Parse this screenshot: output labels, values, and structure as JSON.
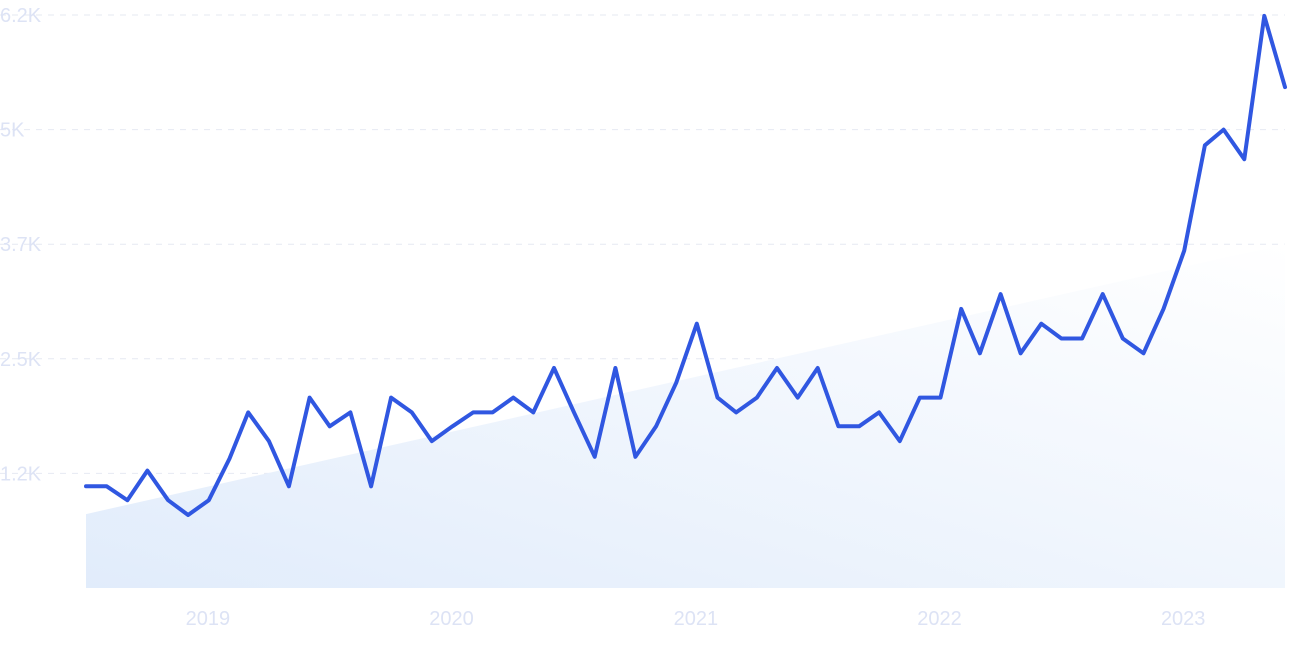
{
  "chart_data": {
    "type": "line",
    "title": "",
    "xlabel": "",
    "ylabel": "",
    "ylim": [
      0,
      6200
    ],
    "yticks": [
      {
        "value": 1240,
        "label": "1.2K"
      },
      {
        "value": 2480,
        "label": "2.5K"
      },
      {
        "value": 3720,
        "label": "3.7K"
      },
      {
        "value": 4960,
        "label": "5K"
      },
      {
        "value": 6200,
        "label": "6.2K"
      }
    ],
    "xticks": [
      {
        "value": "2019-01",
        "label": "2019"
      },
      {
        "value": "2020-01",
        "label": "2020"
      },
      {
        "value": "2021-01",
        "label": "2021"
      },
      {
        "value": "2022-01",
        "label": "2022"
      },
      {
        "value": "2023-01",
        "label": "2023"
      }
    ],
    "grid": true,
    "colors": {
      "line": "#3057e1",
      "trend_fill_start": "#e1ecfb",
      "trend_fill_end": "#ffffff",
      "tick_text": "#dde3f5",
      "grid": "#e6e9f2"
    },
    "trend": {
      "x": [
        "2018-07",
        "2023-06"
      ],
      "values": [
        800,
        3720
      ]
    },
    "series": [
      {
        "x": [
          "2018-07",
          "2018-08",
          "2018-09",
          "2018-10",
          "2018-11",
          "2018-12",
          "2019-01",
          "2019-02",
          "2019-03",
          "2019-04",
          "2019-05",
          "2019-06",
          "2019-07",
          "2019-08",
          "2019-09",
          "2019-10",
          "2019-11",
          "2019-12",
          "2020-01",
          "2020-02",
          "2020-03",
          "2020-04",
          "2020-05",
          "2020-06",
          "2020-07",
          "2020-08",
          "2020-09",
          "2020-10",
          "2020-11",
          "2020-12",
          "2021-01",
          "2021-02",
          "2021-03",
          "2021-04",
          "2021-05",
          "2021-06",
          "2021-07",
          "2021-08",
          "2021-09",
          "2021-10",
          "2021-11",
          "2021-12",
          "2022-01",
          "2022-02",
          "2022-03",
          "2022-04",
          "2022-05",
          "2022-06",
          "2022-07",
          "2022-08",
          "2022-09",
          "2022-10",
          "2022-11",
          "2022-12",
          "2023-01",
          "2023-02",
          "2023-03",
          "2023-04",
          "2023-05",
          "2023-06"
        ],
        "values": [
          1100,
          1100,
          950,
          1270,
          950,
          790,
          950,
          1400,
          1900,
          1590,
          1100,
          2060,
          1750,
          1900,
          1100,
          2060,
          1900,
          1590,
          1750,
          1900,
          1900,
          2060,
          1900,
          2380,
          1900,
          1420,
          2380,
          1420,
          1750,
          2220,
          2860,
          2060,
          1900,
          2060,
          2380,
          2060,
          2380,
          1750,
          1750,
          1900,
          1590,
          2060,
          2060,
          3020,
          2540,
          3180,
          2540,
          2860,
          2700,
          2700,
          3180,
          2700,
          2540,
          3020,
          3650,
          4790,
          4960,
          4640,
          6190,
          5420
        ]
      }
    ]
  }
}
